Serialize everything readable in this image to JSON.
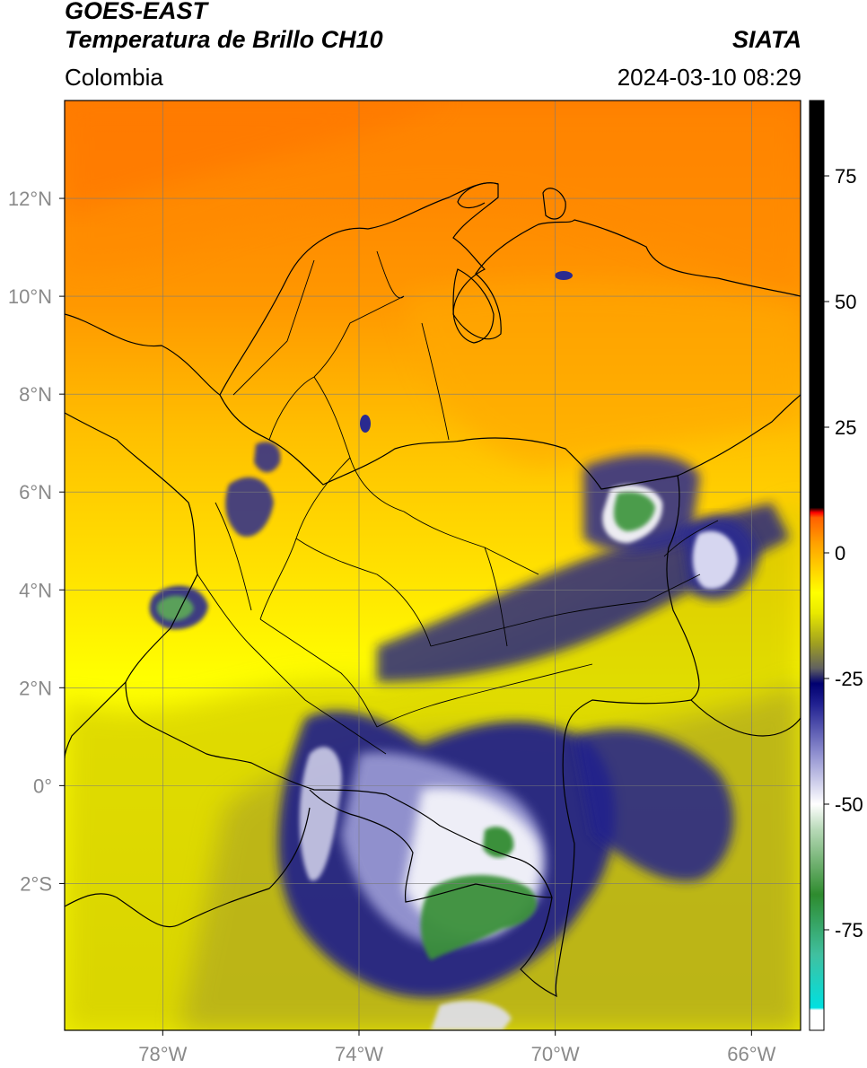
{
  "header": {
    "satellite": "GOES-EAST",
    "product": "Temperatura de Brillo CH10",
    "region": "Colombia",
    "agency": "SIATA",
    "timestamp": "2024-03-10 08:29"
  },
  "map": {
    "lon_range": [
      -80,
      -65
    ],
    "lat_range": [
      -5,
      14
    ],
    "x_ticks": [
      {
        "lon": -78,
        "label": "78°W"
      },
      {
        "lon": -74,
        "label": "74°W"
      },
      {
        "lon": -70,
        "label": "70°W"
      },
      {
        "lon": -66,
        "label": "66°W"
      }
    ],
    "y_ticks": [
      {
        "lat": 12,
        "label": "12°N"
      },
      {
        "lat": 10,
        "label": "10°N"
      },
      {
        "lat": 8,
        "label": "8°N"
      },
      {
        "lat": 6,
        "label": "6°N"
      },
      {
        "lat": 4,
        "label": "4°N"
      },
      {
        "lat": 2,
        "label": "2°N"
      },
      {
        "lat": 0,
        "label": "0°"
      },
      {
        "lat": -2,
        "label": "2°S"
      }
    ],
    "grid": true
  },
  "colorbar": {
    "range": [
      -95,
      90
    ],
    "ticks": [
      75,
      50,
      25,
      0,
      -25,
      -50,
      -75
    ],
    "tick_labels": [
      "75",
      "50",
      "25",
      "0",
      "-25",
      "-50",
      "-75"
    ],
    "stops": [
      {
        "value": -95,
        "color": "#ffffff"
      },
      {
        "value": -91,
        "color": "#ffffff"
      },
      {
        "value": -90.5,
        "color": "#00e0e0"
      },
      {
        "value": -80,
        "color": "#40c0a0"
      },
      {
        "value": -68,
        "color": "#2e8b2e"
      },
      {
        "value": -55,
        "color": "#b8dab8"
      },
      {
        "value": -50,
        "color": "#ffffff"
      },
      {
        "value": -40,
        "color": "#9090d0"
      },
      {
        "value": -30,
        "color": "#202090"
      },
      {
        "value": -26,
        "color": "#000070"
      },
      {
        "value": -23,
        "color": "#606060"
      },
      {
        "value": -18,
        "color": "#a0a020"
      },
      {
        "value": -12,
        "color": "#e8e800"
      },
      {
        "value": -8,
        "color": "#ffff00"
      },
      {
        "value": 2,
        "color": "#ffa000"
      },
      {
        "value": 7,
        "color": "#ff6000"
      },
      {
        "value": 8,
        "color": "#ff0000"
      },
      {
        "value": 9,
        "color": "#000000"
      },
      {
        "value": 90,
        "color": "#000000"
      }
    ]
  }
}
